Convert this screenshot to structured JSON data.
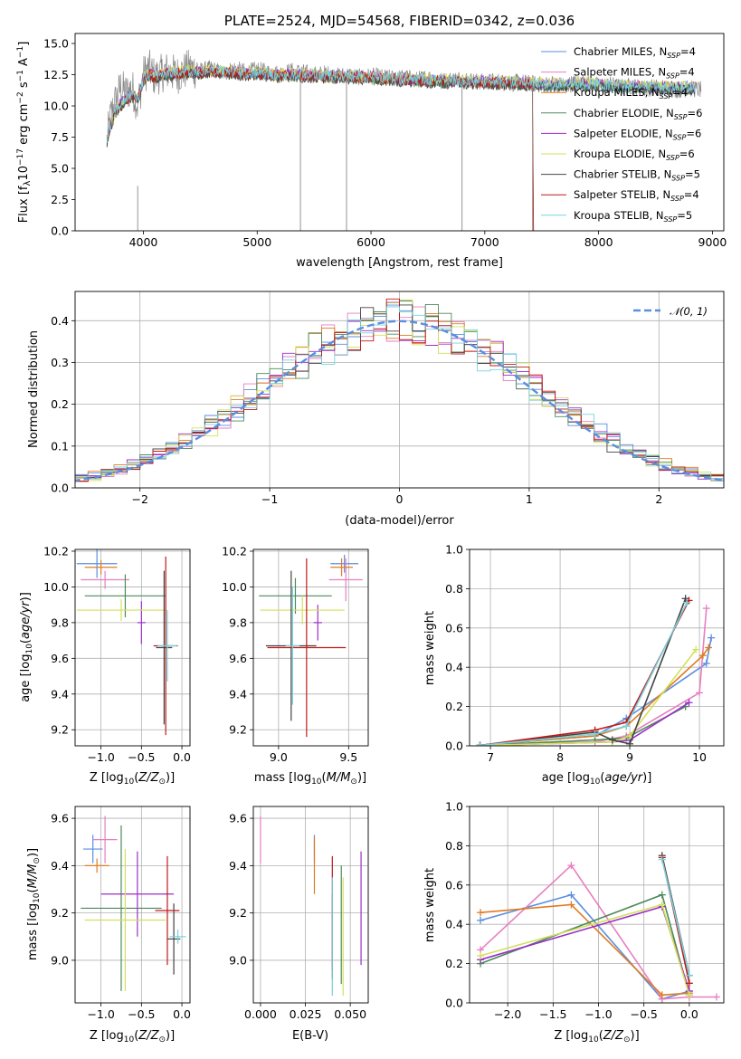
{
  "figure_title": "PLATE=2524, MJD=54568, FIBERID=0342, z=0.036",
  "series": [
    {
      "name": "Chabrier MILES, N_SSP=4",
      "color": "#5a8ee0"
    },
    {
      "name": "Salpeter MILES, N_SSP=4",
      "color": "#e77fc0"
    },
    {
      "name": "Kroupa MILES, N_SSP=4",
      "color": "#e07b22"
    },
    {
      "name": "Chabrier ELODIE, N_SSP=6",
      "color": "#4c8a5a"
    },
    {
      "name": "Salpeter ELODIE, N_SSP=6",
      "color": "#9b2fc7"
    },
    {
      "name": "Kroupa ELODIE, N_SSP=6",
      "color": "#d3e05a"
    },
    {
      "name": "Chabrier STELIB, N_SSP=5",
      "color": "#444444"
    },
    {
      "name": "Salpeter STELIB, N_SSP=4",
      "color": "#c01818"
    },
    {
      "name": "Kroupa STELIB, N_SSP=5",
      "color": "#77d2dd"
    }
  ],
  "chart_data": [
    {
      "id": "spectrum",
      "type": "line",
      "title": "PLATE=2524, MJD=54568, FIBERID=0342, z=0.036",
      "xlabel": "wavelength [Angstrom, rest frame]",
      "ylabel": "Flux [f_λ 10^-17 erg cm^-2 s^-1 A^-1]",
      "xlim": [
        3400,
        9100
      ],
      "ylim": [
        0,
        15.8
      ],
      "xticks": [
        4000,
        5000,
        6000,
        7000,
        8000,
        9000
      ],
      "yticks": [
        0.0,
        2.5,
        5.0,
        7.5,
        10.0,
        12.5,
        15.0
      ],
      "data_series": {
        "name": "data",
        "color": "#888888",
        "x": [
          3680,
          3700,
          3720,
          3760,
          3800,
          3850,
          3900,
          3950,
          3980,
          4000,
          4050,
          4100,
          4200,
          4300,
          4400,
          4500,
          4600,
          4700,
          4800,
          4900,
          5000,
          5100,
          5200,
          5300,
          5400,
          5500,
          5600,
          5700,
          5800,
          5900,
          6000,
          6100,
          6200,
          6300,
          6400,
          6500,
          6600,
          6700,
          6800,
          6900,
          7000,
          7100,
          7200,
          7300,
          7400,
          7500,
          7600,
          7700,
          7800,
          7900,
          8000,
          8100,
          8200,
          8300,
          8400,
          8500,
          8600,
          8700,
          8800,
          8900
        ],
        "y": [
          7.2,
          8.5,
          9.5,
          10.5,
          11.5,
          11.0,
          11.5,
          10.0,
          11.5,
          12.5,
          13.0,
          12.3,
          12.8,
          12.5,
          13.0,
          12.8,
          13.0,
          12.6,
          13.0,
          12.7,
          12.9,
          12.7,
          12.6,
          12.8,
          12.7,
          12.5,
          12.6,
          12.4,
          12.5,
          12.3,
          12.4,
          12.3,
          12.2,
          12.3,
          12.1,
          12.3,
          12.0,
          12.1,
          12.2,
          12.0,
          11.9,
          12.0,
          11.8,
          11.9,
          11.8,
          11.7,
          11.8,
          11.6,
          11.9,
          11.8,
          11.6,
          11.7,
          11.5,
          11.6,
          11.4,
          11.5,
          11.4,
          11.3,
          11.4,
          11.3
        ]
      },
      "model_base": {
        "x": [
          3680,
          3700,
          3750,
          3800,
          3850,
          3900,
          3950,
          4000,
          4050,
          4100,
          4200,
          4300,
          4400,
          4500,
          4600,
          4700,
          4800,
          4900,
          5000,
          5200,
          5400,
          5600,
          5800,
          6000,
          6200,
          6400,
          6600,
          6800,
          7000,
          7200,
          7400,
          7600,
          7800,
          8000,
          8200,
          8400,
          8600,
          8800
        ],
        "y": [
          7.0,
          8.0,
          9.5,
          10.0,
          10.5,
          10.8,
          10.5,
          12.0,
          12.5,
          12.3,
          12.5,
          12.6,
          12.7,
          12.6,
          12.7,
          12.6,
          12.6,
          12.5,
          12.5,
          12.4,
          12.4,
          12.3,
          12.3,
          12.2,
          12.1,
          12.0,
          11.9,
          11.9,
          11.8,
          11.8,
          11.7,
          11.6,
          11.7,
          11.6,
          11.5,
          11.5,
          11.4,
          11.4
        ]
      },
      "model_offsets": [
        0.05,
        0.1,
        0.0,
        -0.05,
        0.15,
        0.2,
        -0.1,
        0.05,
        0.12
      ],
      "model_xmax": [
        8850,
        8850,
        7420,
        8850,
        8850,
        8850,
        8850,
        7420,
        8850
      ],
      "spikes": [
        {
          "x": 3950,
          "ymin": 0,
          "ymax": 3.6
        },
        {
          "x": 5380,
          "ymin": 0,
          "ymax": 12.5
        },
        {
          "x": 5785,
          "ymin": 0,
          "ymax": 12.6
        },
        {
          "x": 6800,
          "ymin": 0,
          "ymax": 12.2
        },
        {
          "x": 7420,
          "ymin": 0,
          "ymax": 11.8
        }
      ]
    },
    {
      "id": "residuals",
      "type": "histogram",
      "xlabel": "(data-model)/error",
      "ylabel": "Normed distribution",
      "xlim": [
        -2.5,
        2.5
      ],
      "ylim": [
        0,
        0.47
      ],
      "xticks": [
        -2,
        -1,
        0,
        1,
        2
      ],
      "yticks": [
        0.0,
        0.1,
        0.2,
        0.3,
        0.4
      ],
      "bin_width": 0.1,
      "gaussian": {
        "name": "N(0,1)",
        "label": "𝒩(0, 1)",
        "color": "#5a8ee0"
      }
    },
    {
      "id": "age_vs_Z",
      "type": "errorbar",
      "xlabel": "Z [log10(Z/Z⊙)]",
      "ylabel": "age [log10(age/yr)]",
      "xlim": [
        -1.32,
        0.1
      ],
      "ylim": [
        9.11,
        10.21
      ],
      "xticks": [
        -1.0,
        -0.5,
        0.0
      ],
      "yticks": [
        9.2,
        9.4,
        9.6,
        9.8,
        10.0,
        10.2
      ],
      "points": [
        {
          "s": 0,
          "x": -1.05,
          "y": 10.13,
          "xerr": 0.25,
          "yerr": 0.08
        },
        {
          "s": 1,
          "x": -0.95,
          "y": 10.04,
          "xerr": 0.3,
          "yerr": 0.05
        },
        {
          "s": 2,
          "x": -1.0,
          "y": 10.11,
          "xerr": 0.2,
          "yerr": 0.04
        },
        {
          "s": 3,
          "x": -0.7,
          "y": 9.95,
          "xerr": 0.5,
          "yerr": 0.12
        },
        {
          "s": 4,
          "x": -0.5,
          "y": 9.8,
          "xerr": 0.05,
          "yerr": 0.12
        },
        {
          "s": 5,
          "x": -0.75,
          "y": 9.87,
          "xerr": 0.55,
          "yerr": 0.06
        },
        {
          "s": 6,
          "x": -0.22,
          "y": 9.66,
          "xerr": 0.1,
          "yerr": 0.43
        },
        {
          "s": 7,
          "x": -0.2,
          "y": 9.67,
          "xerr": 0.15,
          "yerr": 0.5
        },
        {
          "s": 8,
          "x": -0.18,
          "y": 9.67,
          "xerr": 0.12,
          "yerr": 0.2
        }
      ]
    },
    {
      "id": "age_vs_mass",
      "type": "errorbar",
      "xlabel": "mass [log10(M/M⊙)]",
      "ylabel": "",
      "xlim": [
        8.82,
        9.64
      ],
      "ylim": [
        9.11,
        10.21
      ],
      "xticks": [
        9.0,
        9.5
      ],
      "yticks": [
        9.2,
        9.4,
        9.6,
        9.8,
        10.0,
        10.2
      ],
      "points": [
        {
          "s": 0,
          "x": 9.47,
          "y": 10.13,
          "xerr": 0.1,
          "yerr": 0.05
        },
        {
          "s": 1,
          "x": 9.48,
          "y": 10.04,
          "xerr": 0.12,
          "yerr": 0.12
        },
        {
          "s": 2,
          "x": 9.45,
          "y": 10.11,
          "xerr": 0.08,
          "yerr": 0.05
        },
        {
          "s": 3,
          "x": 9.12,
          "y": 9.95,
          "xerr": 0.26,
          "yerr": 0.1
        },
        {
          "s": 4,
          "x": 9.28,
          "y": 9.8,
          "xerr": 0.03,
          "yerr": 0.1
        },
        {
          "s": 5,
          "x": 9.17,
          "y": 9.87,
          "xerr": 0.3,
          "yerr": 0.08
        },
        {
          "s": 6,
          "x": 9.09,
          "y": 9.67,
          "xerr": 0.18,
          "yerr": 0.42
        },
        {
          "s": 7,
          "x": 9.2,
          "y": 9.66,
          "xerr": 0.28,
          "yerr": 0.5
        },
        {
          "s": 8,
          "x": 9.1,
          "y": 9.67,
          "xerr": 0.05,
          "yerr": 0.33
        }
      ]
    },
    {
      "id": "weight_vs_age",
      "type": "line",
      "xlabel": "age [log10(age/yr)]",
      "ylabel": "mass weight",
      "xlim": [
        6.7,
        10.35
      ],
      "ylim": [
        0,
        1.0
      ],
      "xticks": [
        7,
        8,
        9,
        10
      ],
      "yticks": [
        0.0,
        0.2,
        0.4,
        0.6,
        0.8,
        1.0
      ],
      "lines": [
        {
          "s": 0,
          "x": [
            6.85,
            8.5,
            8.95,
            10.1,
            10.17
          ],
          "y": [
            0.003,
            0.05,
            0.14,
            0.42,
            0.55
          ]
        },
        {
          "s": 1,
          "x": [
            6.85,
            8.5,
            8.95,
            10.0,
            10.1
          ],
          "y": [
            0.003,
            0.02,
            0.05,
            0.27,
            0.7
          ]
        },
        {
          "s": 2,
          "x": [
            6.85,
            8.5,
            8.95,
            10.05,
            10.13
          ],
          "y": [
            0.003,
            0.05,
            0.1,
            0.46,
            0.5
          ]
        },
        {
          "s": 3,
          "x": [
            6.85,
            8.5,
            8.95,
            9.8
          ],
          "y": [
            0.002,
            0.03,
            0.04,
            0.2
          ]
        },
        {
          "s": 4,
          "x": [
            6.85,
            8.75,
            9.0,
            9.85
          ],
          "y": [
            0.002,
            0.02,
            0.03,
            0.22
          ]
        },
        {
          "s": 5,
          "x": [
            6.85,
            8.75,
            9.0,
            9.95
          ],
          "y": [
            0.002,
            0.02,
            0.05,
            0.49
          ]
        },
        {
          "s": 6,
          "x": [
            6.85,
            8.5,
            8.75,
            9.0,
            9.8
          ],
          "y": [
            0.002,
            0.07,
            0.03,
            0.01,
            0.75
          ]
        },
        {
          "s": 7,
          "x": [
            6.85,
            8.5,
            8.95,
            9.85
          ],
          "y": [
            0.002,
            0.08,
            0.12,
            0.74
          ]
        },
        {
          "s": 8,
          "x": [
            6.85,
            8.5,
            8.95,
            9.82
          ],
          "y": [
            0.002,
            0.06,
            0.1,
            0.73
          ]
        }
      ]
    },
    {
      "id": "mass_vs_Z",
      "type": "errorbar",
      "xlabel": "Z [log10(Z/Z⊙)]",
      "ylabel": "mass [log10(M/M⊙)]",
      "xlim": [
        -1.32,
        0.1
      ],
      "ylim": [
        8.82,
        9.65
      ],
      "xticks": [
        -1.0,
        -0.5,
        0.0
      ],
      "yticks": [
        9.0,
        9.2,
        9.4,
        9.6
      ],
      "points": [
        {
          "s": 0,
          "x": -1.1,
          "y": 9.47,
          "xerr": 0.12,
          "yerr": 0.06
        },
        {
          "s": 1,
          "x": -0.95,
          "y": 9.51,
          "xerr": 0.15,
          "yerr": 0.1
        },
        {
          "s": 2,
          "x": -1.05,
          "y": 9.4,
          "xerr": 0.15,
          "yerr": 0.03
        },
        {
          "s": 3,
          "x": -0.75,
          "y": 9.22,
          "xerr": 0.5,
          "yerr": 0.35
        },
        {
          "s": 4,
          "x": -0.55,
          "y": 9.28,
          "xerr": 0.45,
          "yerr": 0.18
        },
        {
          "s": 5,
          "x": -0.7,
          "y": 9.17,
          "xerr": 0.5,
          "yerr": 0.3
        },
        {
          "s": 6,
          "x": -0.1,
          "y": 9.09,
          "xerr": 0.08,
          "yerr": 0.15
        },
        {
          "s": 7,
          "x": -0.18,
          "y": 9.21,
          "xerr": 0.15,
          "yerr": 0.23
        },
        {
          "s": 8,
          "x": -0.05,
          "y": 9.1,
          "xerr": 0.1,
          "yerr": 0.03
        }
      ]
    },
    {
      "id": "mass_vs_ebv",
      "type": "errorbar",
      "xlabel": "E(B-V)",
      "ylabel": "",
      "xlim": [
        -0.004,
        0.06
      ],
      "ylim": [
        8.82,
        9.65
      ],
      "xticks": [
        0.0,
        0.025,
        0.05
      ],
      "yticks": [
        9.0,
        9.2,
        9.4,
        9.6
      ],
      "points": [
        {
          "s": 0,
          "x": 0.03,
          "y": 9.47,
          "xerr": 0,
          "yerr": 0.06
        },
        {
          "s": 1,
          "x": 0.0,
          "y": 9.51,
          "xerr": 0,
          "yerr": 0.1
        },
        {
          "s": 2,
          "x": 0.03,
          "y": 9.4,
          "xerr": 0,
          "yerr": 0.12
        },
        {
          "s": 3,
          "x": 0.045,
          "y": 9.15,
          "xerr": 0,
          "yerr": 0.25
        },
        {
          "s": 4,
          "x": 0.056,
          "y": 9.22,
          "xerr": 0,
          "yerr": 0.24
        },
        {
          "s": 5,
          "x": 0.046,
          "y": 9.1,
          "xerr": 0,
          "yerr": 0.25
        },
        {
          "s": 6,
          "x": 0.04,
          "y": 9.1,
          "xerr": 0,
          "yerr": 0.18
        },
        {
          "s": 7,
          "x": 0.04,
          "y": 9.2,
          "xerr": 0,
          "yerr": 0.24
        },
        {
          "s": 8,
          "x": 0.04,
          "y": 9.1,
          "xerr": 0,
          "yerr": 0.25
        }
      ]
    },
    {
      "id": "weight_vs_Z",
      "type": "line",
      "xlabel": "Z [log10(Z/Z⊙)]",
      "ylabel": "mass weight",
      "xlim": [
        -2.42,
        0.38
      ],
      "ylim": [
        0,
        1.0
      ],
      "xticks": [
        -2.0,
        -1.5,
        -1.0,
        -0.5,
        0.0
      ],
      "yticks": [
        0.0,
        0.2,
        0.4,
        0.6,
        0.8,
        1.0
      ],
      "lines": [
        {
          "s": 0,
          "x": [
            -2.3,
            -1.3,
            -0.3,
            0.0
          ],
          "y": [
            0.42,
            0.55,
            0.02,
            0.06
          ]
        },
        {
          "s": 1,
          "x": [
            -2.3,
            -1.3,
            -0.3,
            0.0,
            0.3
          ],
          "y": [
            0.27,
            0.7,
            0.02,
            0.03,
            0.03
          ]
        },
        {
          "s": 2,
          "x": [
            -2.3,
            -1.3,
            -0.3,
            0.0
          ],
          "y": [
            0.46,
            0.5,
            0.04,
            0.05
          ]
        },
        {
          "s": 3,
          "x": [
            -2.3,
            -0.3,
            0.0
          ],
          "y": [
            0.2,
            0.55,
            0.04
          ]
        },
        {
          "s": 4,
          "x": [
            -2.3,
            -0.3,
            0.0
          ],
          "y": [
            0.22,
            0.49,
            0.06
          ]
        },
        {
          "s": 5,
          "x": [
            -2.3,
            -0.3,
            0.0
          ],
          "y": [
            0.24,
            0.5,
            0.04
          ]
        },
        {
          "s": 6,
          "x": [
            -0.3,
            0.0
          ],
          "y": [
            0.75,
            0.14
          ]
        },
        {
          "s": 7,
          "x": [
            -0.3,
            0.0
          ],
          "y": [
            0.74,
            0.1
          ]
        },
        {
          "s": 8,
          "x": [
            -0.3,
            0.0
          ],
          "y": [
            0.73,
            0.14
          ]
        }
      ]
    }
  ]
}
